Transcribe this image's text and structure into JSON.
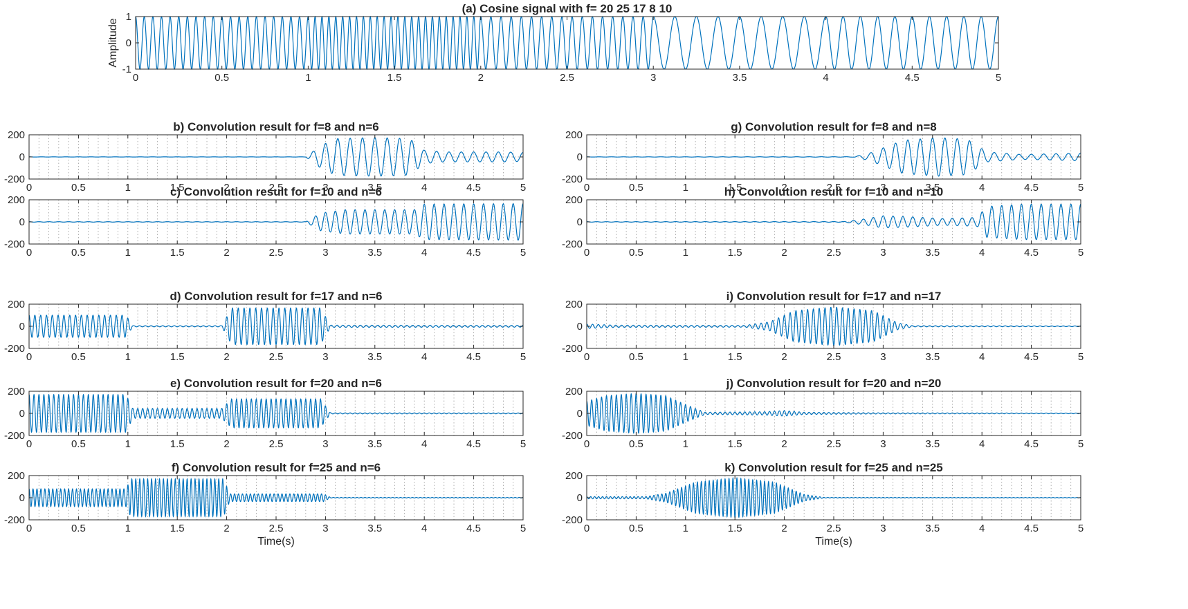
{
  "chart_data": [
    {
      "id": "a",
      "type": "line",
      "title": "(a) Cosine signal with f= 20 25 17 8 10",
      "ylabel": "Amplitude",
      "xlabel": "",
      "xlim": [
        0,
        5
      ],
      "ylim": [
        -1,
        1
      ],
      "xticks": [
        0,
        0.5,
        1,
        1.5,
        2,
        2.5,
        3,
        3.5,
        4,
        4.5,
        5
      ],
      "yticks": [
        -1,
        0,
        1
      ],
      "grid": false,
      "color": "#0072BD",
      "signal": {
        "kind": "piecewise-cosine",
        "amplitude": 1,
        "segments": [
          {
            "from": 0,
            "to": 1,
            "f": 20
          },
          {
            "from": 1,
            "to": 2,
            "f": 25
          },
          {
            "from": 2,
            "to": 3,
            "f": 17
          },
          {
            "from": 3,
            "to": 4,
            "f": 8
          },
          {
            "from": 4,
            "to": 5,
            "f": 10
          }
        ]
      }
    },
    {
      "id": "b",
      "type": "line",
      "title": "b) Convolution result for f=8 and n=6",
      "xlabel": "",
      "ylabel": "",
      "xlim": [
        0,
        5
      ],
      "ylim": [
        -200,
        200
      ],
      "xticks": [
        0,
        0.5,
        1,
        1.5,
        2,
        2.5,
        3,
        3.5,
        4,
        4.5,
        5
      ],
      "yticks": [
        -200,
        0,
        200
      ],
      "grid": true,
      "color": "#0072BD",
      "oscillation_f": 8,
      "envelope": [
        [
          0,
          1
        ],
        [
          2.8,
          1
        ],
        [
          2.95,
          100
        ],
        [
          3.1,
          165
        ],
        [
          3.5,
          175
        ],
        [
          3.85,
          165
        ],
        [
          4.0,
          60
        ],
        [
          4.2,
          45
        ],
        [
          4.8,
          45
        ],
        [
          5,
          40
        ]
      ]
    },
    {
      "id": "c",
      "type": "line",
      "title": "c) Convolution result for f=10 and n=6",
      "xlabel": "",
      "ylabel": "",
      "xlim": [
        0,
        5
      ],
      "ylim": [
        -200,
        200
      ],
      "xticks": [
        0,
        0.5,
        1,
        1.5,
        2,
        2.5,
        3,
        3.5,
        4,
        4.5,
        5
      ],
      "yticks": [
        -200,
        0,
        200
      ],
      "grid": true,
      "color": "#0072BD",
      "oscillation_f": 10,
      "envelope": [
        [
          0,
          2
        ],
        [
          2.8,
          2
        ],
        [
          2.95,
          80
        ],
        [
          3.2,
          110
        ],
        [
          3.9,
          110
        ],
        [
          4.0,
          160
        ],
        [
          5,
          165
        ]
      ]
    },
    {
      "id": "d",
      "type": "line",
      "title": "d) Convolution result for f=17 and n=6",
      "xlabel": "",
      "ylabel": "",
      "xlim": [
        0,
        5
      ],
      "ylim": [
        -200,
        200
      ],
      "xticks": [
        0,
        0.5,
        1,
        1.5,
        2,
        2.5,
        3,
        3.5,
        4,
        4.5,
        5
      ],
      "yticks": [
        -200,
        0,
        200
      ],
      "grid": true,
      "color": "#0072BD",
      "oscillation_f": 17,
      "envelope": [
        [
          0,
          100
        ],
        [
          0.98,
          100
        ],
        [
          1.05,
          5
        ],
        [
          1.95,
          5
        ],
        [
          2.05,
          165
        ],
        [
          2.95,
          165
        ],
        [
          3.05,
          10
        ],
        [
          5,
          8
        ]
      ]
    },
    {
      "id": "e",
      "type": "line",
      "title": "e) Convolution result for f=20 and n=6",
      "xlabel": "",
      "ylabel": "",
      "xlim": [
        0,
        5
      ],
      "ylim": [
        -200,
        200
      ],
      "xticks": [
        0,
        0.5,
        1,
        1.5,
        2,
        2.5,
        3,
        3.5,
        4,
        4.5,
        5
      ],
      "yticks": [
        -200,
        0,
        200
      ],
      "grid": true,
      "color": "#0072BD",
      "oscillation_f": 20,
      "envelope": [
        [
          0,
          170
        ],
        [
          0.98,
          170
        ],
        [
          1.05,
          45
        ],
        [
          1.95,
          45
        ],
        [
          2.05,
          130
        ],
        [
          2.95,
          130
        ],
        [
          3.05,
          5
        ],
        [
          5,
          4
        ]
      ]
    },
    {
      "id": "f",
      "type": "line",
      "title": "f) Convolution result for f=25 and n=6",
      "xlabel": "Time(s)",
      "ylabel": "",
      "xlim": [
        0,
        5
      ],
      "ylim": [
        -200,
        200
      ],
      "xticks": [
        0,
        0.5,
        1,
        1.5,
        2,
        2.5,
        3,
        3.5,
        4,
        4.5,
        5
      ],
      "yticks": [
        -200,
        0,
        200
      ],
      "grid": true,
      "color": "#0072BD",
      "oscillation_f": 25,
      "envelope": [
        [
          0,
          80
        ],
        [
          0.98,
          80
        ],
        [
          1.03,
          170
        ],
        [
          1.97,
          170
        ],
        [
          2.03,
          35
        ],
        [
          2.98,
          35
        ],
        [
          3.05,
          3
        ],
        [
          5,
          3
        ]
      ]
    },
    {
      "id": "g",
      "type": "line",
      "title": "g) Convolution result for f=8 and n=8",
      "xlabel": "",
      "ylabel": "",
      "xlim": [
        0,
        5
      ],
      "ylim": [
        -200,
        200
      ],
      "xticks": [
        0,
        0.5,
        1,
        1.5,
        2,
        2.5,
        3,
        3.5,
        4,
        4.5,
        5
      ],
      "yticks": [
        -200,
        0,
        200
      ],
      "grid": true,
      "color": "#0072BD",
      "oscillation_f": 8,
      "envelope": [
        [
          0,
          1
        ],
        [
          2.7,
          2
        ],
        [
          2.85,
          30
        ],
        [
          3.2,
          150
        ],
        [
          3.55,
          175
        ],
        [
          3.85,
          160
        ],
        [
          4.05,
          45
        ],
        [
          4.4,
          22
        ],
        [
          4.8,
          30
        ],
        [
          5,
          35
        ]
      ]
    },
    {
      "id": "h",
      "type": "line",
      "title": "h) Convolution result for f=10 and n=10",
      "xlabel": "",
      "ylabel": "",
      "xlim": [
        0,
        5
      ],
      "ylim": [
        -200,
        200
      ],
      "xticks": [
        0,
        0.5,
        1,
        1.5,
        2,
        2.5,
        3,
        3.5,
        4,
        4.5,
        5
      ],
      "yticks": [
        -200,
        0,
        200
      ],
      "grid": true,
      "color": "#0072BD",
      "oscillation_f": 10,
      "envelope": [
        [
          0,
          2
        ],
        [
          2.6,
          3
        ],
        [
          2.8,
          25
        ],
        [
          3.0,
          55
        ],
        [
          3.3,
          45
        ],
        [
          3.6,
          30
        ],
        [
          3.95,
          40
        ],
        [
          4.05,
          140
        ],
        [
          4.4,
          160
        ],
        [
          5,
          160
        ]
      ]
    },
    {
      "id": "i",
      "type": "line",
      "title": "i) Convolution result for f=17 and n=17",
      "xlabel": "",
      "ylabel": "",
      "xlim": [
        0,
        5
      ],
      "ylim": [
        -200,
        200
      ],
      "xticks": [
        0,
        0.5,
        1,
        1.5,
        2,
        2.5,
        3,
        3.5,
        4,
        4.5,
        5
      ],
      "yticks": [
        -200,
        0,
        200
      ],
      "grid": true,
      "color": "#0072BD",
      "oscillation_f": 17,
      "envelope": [
        [
          0,
          20
        ],
        [
          0.3,
          10
        ],
        [
          1.6,
          8
        ],
        [
          1.85,
          40
        ],
        [
          2.1,
          140
        ],
        [
          2.5,
          175
        ],
        [
          2.9,
          140
        ],
        [
          3.15,
          30
        ],
        [
          3.3,
          5
        ],
        [
          5,
          3
        ]
      ]
    },
    {
      "id": "j",
      "type": "line",
      "title": "j) Convolution result for f=20 and n=20",
      "xlabel": "",
      "ylabel": "",
      "xlim": [
        0,
        5
      ],
      "ylim": [
        -200,
        200
      ],
      "xticks": [
        0,
        0.5,
        1,
        1.5,
        2,
        2.5,
        3,
        3.5,
        4,
        4.5,
        5
      ],
      "yticks": [
        -200,
        0,
        200
      ],
      "grid": true,
      "color": "#0072BD",
      "oscillation_f": 20,
      "envelope": [
        [
          0,
          110
        ],
        [
          0.2,
          160
        ],
        [
          0.5,
          180
        ],
        [
          0.8,
          160
        ],
        [
          1.0,
          80
        ],
        [
          1.2,
          10
        ],
        [
          1.8,
          15
        ],
        [
          2.0,
          25
        ],
        [
          2.2,
          10
        ],
        [
          3.0,
          5
        ],
        [
          5,
          3
        ]
      ]
    },
    {
      "id": "k",
      "type": "line",
      "title": "k) Convolution result for f=25 and n=25",
      "xlabel": "Time(s)",
      "ylabel": "",
      "xlim": [
        0,
        5
      ],
      "ylim": [
        -200,
        200
      ],
      "xticks": [
        0,
        0.5,
        1,
        1.5,
        2,
        2.5,
        3,
        3.5,
        4,
        4.5,
        5
      ],
      "yticks": [
        -200,
        0,
        200
      ],
      "grid": true,
      "color": "#0072BD",
      "oscillation_f": 25,
      "envelope": [
        [
          0,
          10
        ],
        [
          0.6,
          10
        ],
        [
          0.8,
          40
        ],
        [
          1.1,
          140
        ],
        [
          1.5,
          180
        ],
        [
          1.9,
          140
        ],
        [
          2.2,
          30
        ],
        [
          2.4,
          3
        ],
        [
          5,
          2
        ]
      ]
    }
  ]
}
